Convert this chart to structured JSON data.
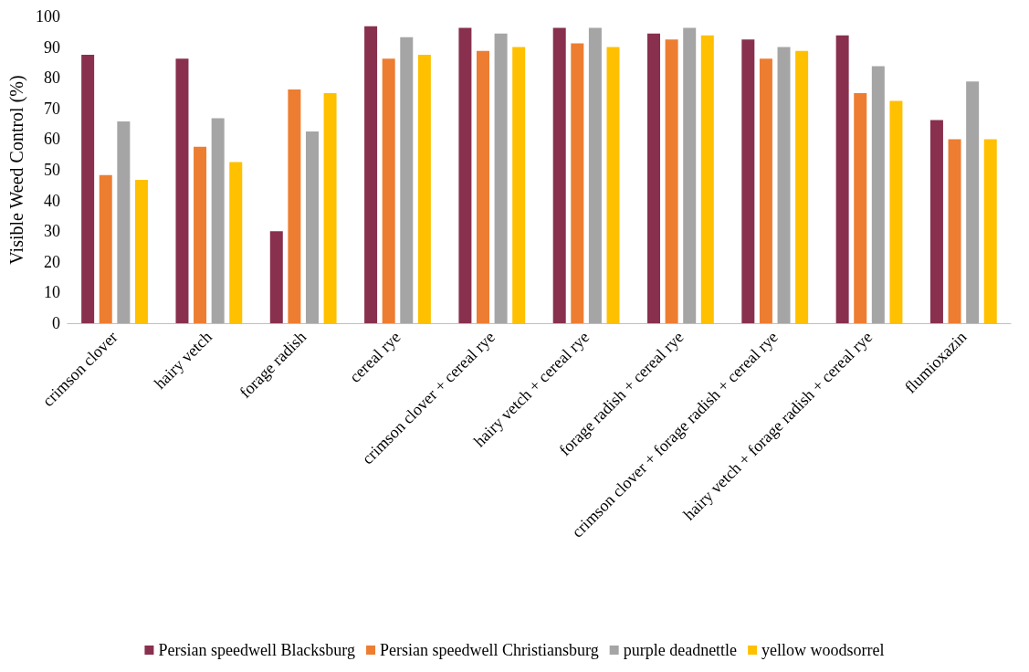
{
  "chart_data": {
    "type": "bar",
    "ylabel": "Visible Weed Control (%)",
    "categories": [
      "crimson clover",
      "hairy vetch",
      "forage radish",
      "cereal rye",
      "crimson clover + cereal rye",
      "hairy vetch + cereal rye",
      "forage radish + cereal rye",
      "crimson clover + forage radish + cereal rye",
      "hairy vetch + forage radish + cereal rye",
      "flumioxazin"
    ],
    "series": [
      {
        "name": "Persian speedwell Blacksburg",
        "color": "#88304e",
        "values": [
          87.5,
          86.2,
          30,
          96.8,
          96.3,
          96.3,
          94.4,
          92.5,
          93.8,
          66.2
        ]
      },
      {
        "name": "Persian speedwell Christiansburg",
        "color": "#ed7d31",
        "values": [
          48.3,
          57.5,
          76.2,
          86.2,
          88.8,
          91.2,
          92.5,
          86.2,
          75,
          60
        ]
      },
      {
        "name": "purple deadnettle",
        "color": "#a5a5a5",
        "values": [
          65.8,
          66.8,
          62.5,
          93.2,
          94.4,
          96.3,
          96.3,
          90,
          83.8,
          78.8
        ]
      },
      {
        "name": "yellow woodsorrel",
        "color": "#ffc000",
        "values": [
          46.7,
          52.5,
          75,
          87.5,
          90,
          90,
          93.8,
          88.8,
          72.5,
          60
        ]
      }
    ],
    "ylim": [
      0,
      100
    ],
    "yticks": [
      0,
      10,
      20,
      30,
      40,
      50,
      60,
      70,
      80,
      90,
      100
    ],
    "grid": false,
    "legend": "bottom"
  }
}
